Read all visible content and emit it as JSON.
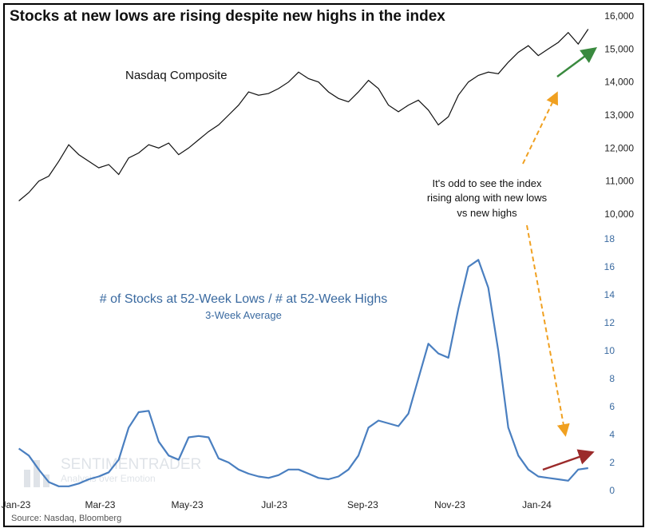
{
  "title": "Stocks at new lows are rising despite new highs in the index",
  "source": "Source: Nasdaq, Bloomberg",
  "watermark": {
    "line1": "SENTIMENTRADER",
    "line2": "Analysis over Emotion"
  },
  "annotation": {
    "lines": [
      "It's odd to see the index",
      "rising along with new lows",
      "vs new highs"
    ]
  },
  "colors": {
    "nasdaq": "#111111",
    "ratio": "#4a7fc0",
    "axis_right_lower": "#3a6aa0",
    "arrow_green": "#3a8a3f",
    "arrow_red": "#9b2a2a",
    "arrow_orange": "#f0a020"
  },
  "chart_data": [
    {
      "type": "line",
      "title": "Nasdaq Composite",
      "series": [
        {
          "name": "Nasdaq Composite",
          "x": [
            "2023-01-03",
            "2023-01-10",
            "2023-01-17",
            "2023-01-24",
            "2023-01-31",
            "2023-02-07",
            "2023-02-14",
            "2023-02-21",
            "2023-02-28",
            "2023-03-07",
            "2023-03-14",
            "2023-03-21",
            "2023-03-28",
            "2023-04-04",
            "2023-04-11",
            "2023-04-18",
            "2023-04-25",
            "2023-05-02",
            "2023-05-09",
            "2023-05-16",
            "2023-05-23",
            "2023-05-30",
            "2023-06-06",
            "2023-06-13",
            "2023-06-20",
            "2023-06-27",
            "2023-07-04",
            "2023-07-11",
            "2023-07-18",
            "2023-07-25",
            "2023-08-01",
            "2023-08-08",
            "2023-08-15",
            "2023-08-22",
            "2023-08-29",
            "2023-09-05",
            "2023-09-12",
            "2023-09-19",
            "2023-09-26",
            "2023-10-03",
            "2023-10-10",
            "2023-10-17",
            "2023-10-24",
            "2023-10-31",
            "2023-11-07",
            "2023-11-14",
            "2023-11-21",
            "2023-11-28",
            "2023-12-05",
            "2023-12-12",
            "2023-12-19",
            "2023-12-26",
            "2024-01-02",
            "2024-01-09",
            "2024-01-16",
            "2024-01-23",
            "2024-01-30",
            "2024-02-06"
          ],
          "values": [
            10400,
            10650,
            11000,
            11150,
            11600,
            12100,
            11800,
            11600,
            11400,
            11500,
            11200,
            11700,
            11850,
            12100,
            12000,
            12150,
            11800,
            12000,
            12250,
            12500,
            12700,
            13000,
            13300,
            13700,
            13600,
            13650,
            13800,
            14000,
            14300,
            14100,
            14000,
            13700,
            13500,
            13400,
            13700,
            14050,
            13800,
            13300,
            13100,
            13300,
            13450,
            13150,
            12700,
            12950,
            13600,
            14000,
            14200,
            14300,
            14250,
            14600,
            14900,
            15100,
            14800,
            15000,
            15200,
            15500,
            15150,
            15600
          ]
        }
      ],
      "ylim": [
        10000,
        16000
      ],
      "yticks": [
        "10,000",
        "11,000",
        "12,000",
        "13,000",
        "14,000",
        "15,000",
        "16,000"
      ]
    },
    {
      "type": "line",
      "title": "# of Stocks at 52-Week Lows / # at 52-Week Highs",
      "subtitle": "3-Week Average",
      "series": [
        {
          "name": "# of Stocks at 52-Week Lows / # at 52-Week Highs",
          "x": [
            "2023-01-03",
            "2023-01-10",
            "2023-01-17",
            "2023-01-24",
            "2023-01-31",
            "2023-02-07",
            "2023-02-14",
            "2023-02-21",
            "2023-02-28",
            "2023-03-07",
            "2023-03-14",
            "2023-03-21",
            "2023-03-28",
            "2023-04-04",
            "2023-04-11",
            "2023-04-18",
            "2023-04-25",
            "2023-05-02",
            "2023-05-09",
            "2023-05-16",
            "2023-05-23",
            "2023-05-30",
            "2023-06-06",
            "2023-06-13",
            "2023-06-20",
            "2023-06-27",
            "2023-07-04",
            "2023-07-11",
            "2023-07-18",
            "2023-07-25",
            "2023-08-01",
            "2023-08-08",
            "2023-08-15",
            "2023-08-22",
            "2023-08-29",
            "2023-09-05",
            "2023-09-12",
            "2023-09-19",
            "2023-09-26",
            "2023-10-03",
            "2023-10-10",
            "2023-10-17",
            "2023-10-24",
            "2023-10-31",
            "2023-11-07",
            "2023-11-14",
            "2023-11-21",
            "2023-11-28",
            "2023-12-05",
            "2023-12-12",
            "2023-12-19",
            "2023-12-26",
            "2024-01-02",
            "2024-01-09",
            "2024-01-16",
            "2024-01-23",
            "2024-01-30",
            "2024-02-06"
          ],
          "values": [
            3.0,
            2.5,
            1.5,
            0.6,
            0.3,
            0.3,
            0.5,
            0.8,
            1.0,
            1.3,
            2.2,
            4.5,
            5.6,
            5.7,
            3.5,
            2.5,
            2.2,
            3.8,
            3.9,
            3.8,
            2.3,
            2.0,
            1.5,
            1.2,
            1.0,
            0.9,
            1.1,
            1.5,
            1.5,
            1.2,
            0.9,
            0.8,
            1.0,
            1.5,
            2.5,
            4.5,
            5.0,
            4.8,
            4.6,
            5.5,
            8.0,
            10.5,
            9.8,
            9.5,
            13.0,
            16.0,
            16.5,
            14.5,
            10.0,
            4.5,
            2.5,
            1.5,
            1.0,
            0.9,
            0.8,
            0.7,
            1.5,
            1.6
          ]
        }
      ],
      "ylim": [
        0,
        18
      ],
      "yticks": [
        "0",
        "2",
        "4",
        "6",
        "8",
        "10",
        "12",
        "14",
        "16",
        "18"
      ]
    }
  ],
  "x_axis": {
    "ticks": [
      "Jan-23",
      "Mar-23",
      "May-23",
      "Jul-23",
      "Sep-23",
      "Nov-23",
      "Jan-24"
    ],
    "tick_dates": [
      "2023-01-01",
      "2023-03-01",
      "2023-05-01",
      "2023-07-01",
      "2023-09-01",
      "2023-11-01",
      "2024-01-01"
    ]
  }
}
